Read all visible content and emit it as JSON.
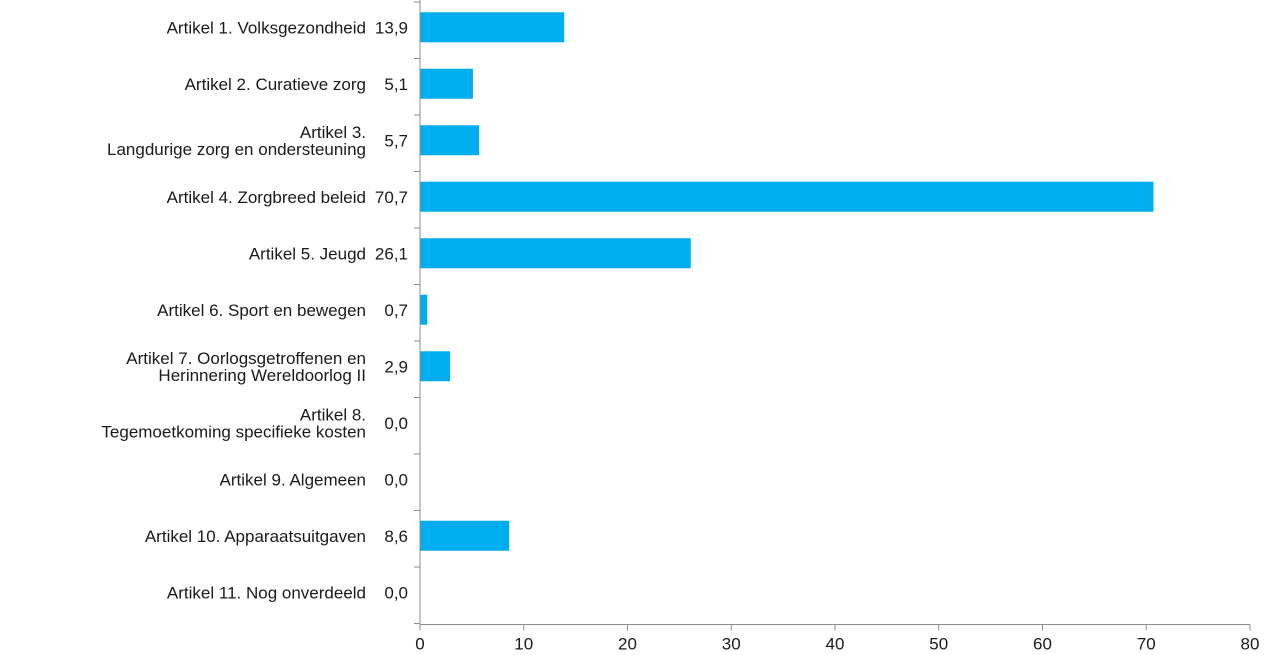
{
  "chart_data": {
    "type": "bar",
    "orientation": "horizontal",
    "categories": [
      [
        "Artikel 1. Volksgezondheid"
      ],
      [
        "Artikel 2. Curatieve zorg"
      ],
      [
        "Artikel 3.",
        "Langdurige zorg en ondersteuning"
      ],
      [
        "Artikel 4. Zorgbreed beleid"
      ],
      [
        "Artikel 5. Jeugd"
      ],
      [
        "Artikel 6. Sport en bewegen"
      ],
      [
        "Artikel 7. Oorlogsgetroffenen en",
        "Herinnering Wereldoorlog II"
      ],
      [
        "Artikel 8.",
        "Tegemoetkoming specifieke kosten"
      ],
      [
        "Artikel 9. Algemeen"
      ],
      [
        "Artikel 10. Apparaatsuitgaven"
      ],
      [
        "Artikel 11. Nog onverdeeld"
      ]
    ],
    "values": [
      13.9,
      5.1,
      5.7,
      70.7,
      26.1,
      0.7,
      2.9,
      0.0,
      0.0,
      8.6,
      0.0
    ],
    "value_labels": [
      "13,9",
      "5,1",
      "5,7",
      "70,7",
      "26,1",
      "0,7",
      "2,9",
      "0,0",
      "0,0",
      "8,6",
      "0,0"
    ],
    "xlim": [
      0,
      80
    ],
    "xticks": [
      0,
      10,
      20,
      30,
      40,
      50,
      60,
      70,
      80
    ],
    "grid": false,
    "legend": "none",
    "bar_color": "#00aeef",
    "axis_color": "#8c8c8c",
    "text_color": "#1a1a1a"
  }
}
